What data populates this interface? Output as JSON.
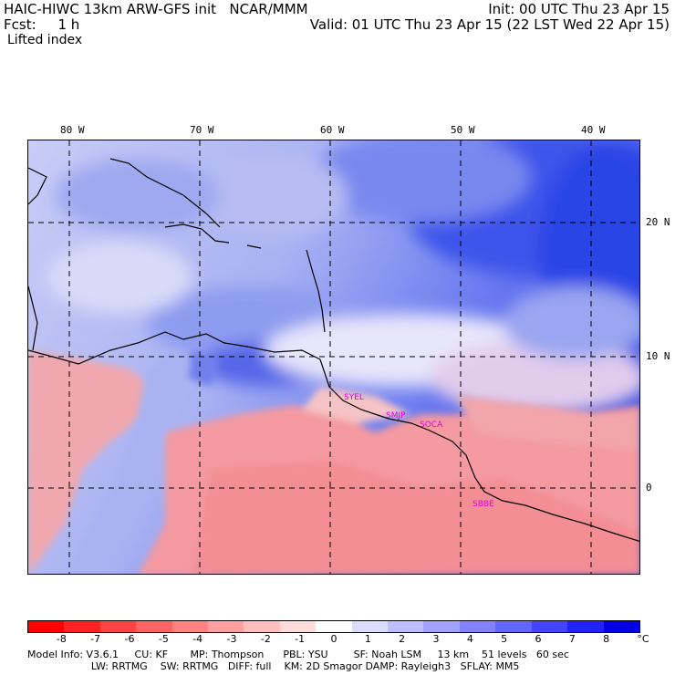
{
  "header": {
    "model_line": "HAIC-HIWC 13km ARW-GFS init   NCAR/MMM",
    "init_line": "Init: 00 UTC Thu 23 Apr 15",
    "fcst_line": "Fcst:     1 h",
    "valid_line": "Valid: 01 UTC Thu 23 Apr 15 (22 LST Wed 22 Apr 15)",
    "field_line": "Lifted index"
  },
  "map": {
    "lon_labels": [
      "80 W",
      "70 W",
      "60 W",
      "50 W",
      "40 W"
    ],
    "lat_labels": [
      "20 N",
      "10 N",
      "0"
    ],
    "stations": [
      "SYEL",
      "SMJP",
      "SOCA",
      "SBBE"
    ]
  },
  "colorbar": {
    "ticks": [
      "-8",
      "-7",
      "-6",
      "-5",
      "-4",
      "-3",
      "-2",
      "-1",
      "0",
      "1",
      "2",
      "3",
      "4",
      "5",
      "6",
      "7",
      "8"
    ],
    "unit": "°C",
    "colors": [
      "#ff0000",
      "#ff2222",
      "#ff4444",
      "#ff6464",
      "#ff8282",
      "#ffa0a0",
      "#ffbebe",
      "#ffdcdc",
      "#ffffff",
      "#dcdcff",
      "#bebeff",
      "#a0a0ff",
      "#8282ff",
      "#6464ff",
      "#4444ff",
      "#2222ff",
      "#0000e6"
    ]
  },
  "footer": {
    "line1": "Model Info: V3.6.1     CU: KF       MP: Thompson      PBL: YSU        SF: Noah LSM     13 km    51 levels   60 sec",
    "line2": "                    LW: RRTMG    SW: RRTMG   DIFF: full    KM: 2D Smagor DAMP: Rayleigh3   SFLAY: MM5"
  }
}
